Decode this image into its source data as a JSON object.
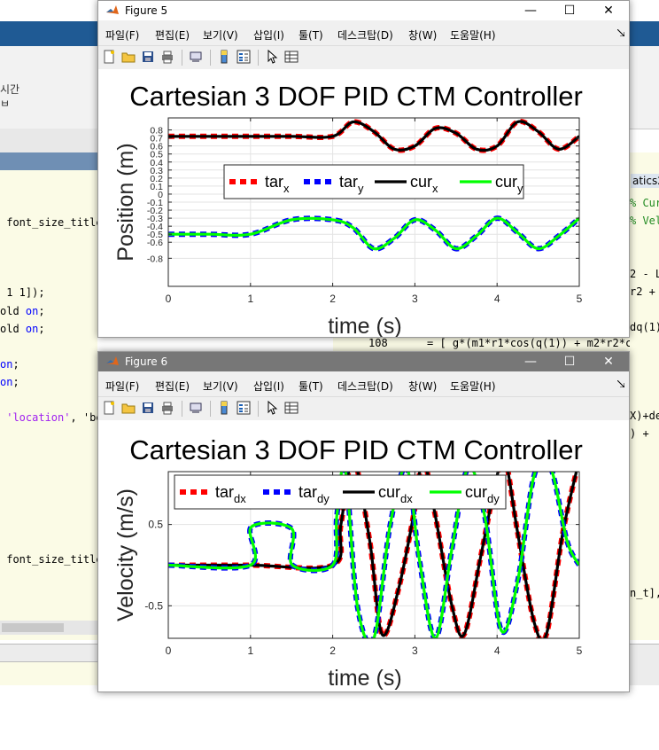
{
  "background": {
    "ribbon_text": [
      "시간",
      "ㅂ"
    ],
    "left_code_lines": [
      {
        "parts": [
          {
            "c": "t",
            "s": " font_size_title)"
          }
        ],
        "y": 244
      },
      {
        "parts": [
          {
            "c": "t",
            "s": " 1 1]);"
          }
        ],
        "y": 323
      },
      {
        "parts": [
          {
            "c": "t",
            "s": "old "
          },
          {
            "c": "k",
            "s": "on"
          },
          {
            "c": "t",
            "s": ";"
          }
        ],
        "y": 344
      },
      {
        "parts": [
          {
            "c": "t",
            "s": "old "
          },
          {
            "c": "k",
            "s": "on"
          },
          {
            "c": "t",
            "s": ";"
          }
        ],
        "y": 364
      },
      {
        "parts": [
          {
            "c": "k",
            "s": "on"
          },
          {
            "c": "t",
            "s": ";"
          }
        ],
        "y": 404
      },
      {
        "parts": [
          {
            "c": "k",
            "s": "on"
          },
          {
            "c": "t",
            "s": ";"
          }
        ],
        "y": 424
      },
      {
        "parts": [
          {
            "c": "p",
            "s": " 'location'"
          },
          {
            "c": "t",
            "s": ", 'be"
          }
        ],
        "y": 464
      },
      {
        "parts": [
          {
            "c": "t",
            "s": " font_size_title)"
          }
        ],
        "y": 624
      }
    ],
    "right_code_lines": [
      {
        "parts": [
          {
            "c": "g",
            "s": "% Cur"
          }
        ],
        "y": 222
      },
      {
        "parts": [
          {
            "c": "g",
            "s": "% Velo"
          }
        ],
        "y": 242
      },
      {
        "parts": [
          {
            "c": "t",
            "s": "2 - L2"
          }
        ],
        "y": 302
      },
      {
        "parts": [
          {
            "c": "t",
            "s": "r2 + 2"
          }
        ],
        "y": 322
      },
      {
        "parts": [
          {
            "c": "t",
            "s": "dq(1)+"
          }
        ],
        "y": 362
      },
      {
        "parts": [
          {
            "c": "t",
            "s": "X)+de"
          }
        ],
        "y": 462
      },
      {
        "parts": [
          {
            "c": "t",
            "s": ") + "
          }
        ],
        "y": 482
      },
      {
        "parts": [
          {
            "c": "t",
            "s": "n_t],"
          }
        ],
        "y": 662
      }
    ],
    "tab_label": "atics2",
    "line_number": "108",
    "mid_code": "= [ g*(m1*r1*cos(q(1)) + m2*r2*cos(q("
  },
  "figure5": {
    "title": "Figure 5",
    "menu": [
      "파일(F)",
      "편집(E)",
      "보기(V)",
      "삽입(I)",
      "툴(T)",
      "데스크탑(D)",
      "창(W)",
      "도움말(H)"
    ]
  },
  "figure6": {
    "title": "Figure 6",
    "menu": [
      "파일(F)",
      "편집(E)",
      "보기(V)",
      "삽입(I)",
      "툴(T)",
      "데스크탑(D)",
      "창(W)",
      "도움말(H)"
    ]
  },
  "chart_data": [
    {
      "type": "line",
      "title": "Cartesian 3 DOF PID CTM Controller",
      "xlabel": "time (s)",
      "ylabel": "Position (m)",
      "xlim": [
        0,
        5
      ],
      "ylim": [
        -1.15,
        0.95
      ],
      "xticks": [
        0,
        1,
        2,
        3,
        4,
        5
      ],
      "yticks": [
        0.8,
        0.7,
        0.6,
        0.5,
        0.4,
        0.3,
        0.2,
        0.1,
        0,
        -0.1,
        -0.2,
        -0.3,
        -0.4,
        -0.5,
        -0.6,
        -0.8
      ],
      "ytick_labels": [
        "0.8",
        "0.7",
        "0.6",
        "0.5",
        "0.4",
        "0.3",
        "0.2",
        "0.1",
        "0",
        "-0.1",
        "-0.2",
        "-0.3",
        "-0.4",
        "-0.5",
        "-0.6",
        "-0.8"
      ],
      "grid": true,
      "legend_position": "middle",
      "legend": [
        {
          "base": "tar",
          "sub": "x",
          "color": "#ff0000",
          "style": "dashed"
        },
        {
          "base": "tar",
          "sub": "y",
          "color": "#0000ff",
          "style": "dashed"
        },
        {
          "base": "cur",
          "sub": "x",
          "color": "#000000",
          "style": "solid"
        },
        {
          "base": "cur",
          "sub": "y",
          "color": "#00ff00",
          "style": "solid"
        }
      ],
      "series": [
        {
          "name": "tar_x",
          "color": "#ff0000",
          "dash": true,
          "x": [
            0,
            0.5,
            1,
            1.5,
            2,
            2.25,
            2.5,
            2.75,
            3,
            3.25,
            3.5,
            3.75,
            4,
            4.25,
            4.5,
            4.75,
            5
          ],
          "y": [
            0.72,
            0.72,
            0.72,
            0.72,
            0.72,
            0.9,
            0.78,
            0.56,
            0.6,
            0.82,
            0.76,
            0.56,
            0.6,
            0.9,
            0.78,
            0.56,
            0.72
          ]
        },
        {
          "name": "cur_x",
          "color": "#000000",
          "dash": false,
          "x": [
            0,
            0.5,
            1,
            1.5,
            2,
            2.25,
            2.5,
            2.75,
            3,
            3.25,
            3.5,
            3.75,
            4,
            4.25,
            4.5,
            4.75,
            5
          ],
          "y": [
            0.72,
            0.72,
            0.72,
            0.72,
            0.72,
            0.9,
            0.78,
            0.56,
            0.6,
            0.82,
            0.76,
            0.56,
            0.6,
            0.9,
            0.78,
            0.56,
            0.72
          ]
        },
        {
          "name": "tar_y",
          "color": "#0000ff",
          "dash": true,
          "x": [
            0,
            0.5,
            1,
            1.5,
            2,
            2.25,
            2.5,
            2.75,
            3,
            3.25,
            3.5,
            3.75,
            4,
            4.25,
            4.5,
            4.75,
            5
          ],
          "y": [
            -0.5,
            -0.5,
            -0.5,
            -0.32,
            -0.32,
            -0.42,
            -0.68,
            -0.55,
            -0.32,
            -0.45,
            -0.68,
            -0.52,
            -0.3,
            -0.48,
            -0.68,
            -0.52,
            -0.3
          ]
        },
        {
          "name": "cur_y",
          "color": "#00ff00",
          "dash": false,
          "x": [
            0,
            0.5,
            1,
            1.5,
            2,
            2.25,
            2.5,
            2.75,
            3,
            3.25,
            3.5,
            3.75,
            4,
            4.25,
            4.5,
            4.75,
            5
          ],
          "y": [
            -0.5,
            -0.5,
            -0.5,
            -0.32,
            -0.32,
            -0.42,
            -0.68,
            -0.55,
            -0.32,
            -0.45,
            -0.68,
            -0.52,
            -0.3,
            -0.48,
            -0.68,
            -0.52,
            -0.3
          ]
        }
      ]
    },
    {
      "type": "line",
      "title": "Cartesian 3 DOF PID CTM Controller",
      "xlabel": "time (s)",
      "ylabel": "Velocity (m/s)",
      "xlim": [
        0,
        5
      ],
      "ylim": [
        -0.9,
        1.15
      ],
      "xticks": [
        0,
        1,
        2,
        3,
        4,
        5
      ],
      "yticks": [
        0.5,
        -0.5
      ],
      "ytick_labels": [
        "0.5",
        "-0.5"
      ],
      "grid": true,
      "legend_position": "top-left",
      "legend": [
        {
          "base": "tar",
          "sub": "dx",
          "color": "#ff0000",
          "style": "dashed"
        },
        {
          "base": "tar",
          "sub": "dy",
          "color": "#0000ff",
          "style": "dashed"
        },
        {
          "base": "cur",
          "sub": "dx",
          "color": "#000000",
          "style": "solid"
        },
        {
          "base": "cur",
          "sub": "dy",
          "color": "#00ff00",
          "style": "solid"
        }
      ],
      "series": [
        {
          "name": "tar_dx",
          "color": "#ff0000",
          "dash": true,
          "x": [
            0,
            1,
            2,
            2.1,
            2.25,
            2.45,
            2.6,
            2.8,
            3.0,
            3.1,
            3.25,
            3.45,
            3.6,
            3.8,
            4.0,
            4.1,
            4.25,
            4.45,
            4.6,
            4.8,
            5
          ],
          "y": [
            0,
            0,
            0,
            0.5,
            1.3,
            0.3,
            -0.85,
            -0.3,
            0.7,
            1.3,
            0.6,
            -0.5,
            -0.85,
            0.1,
            1.1,
            1.3,
            0.4,
            -0.7,
            -0.85,
            0.4,
            1.3
          ]
        },
        {
          "name": "cur_dx",
          "color": "#000000",
          "dash": false,
          "x": [
            0,
            1,
            2,
            2.1,
            2.25,
            2.45,
            2.6,
            2.8,
            3.0,
            3.1,
            3.25,
            3.45,
            3.6,
            3.8,
            4.0,
            4.1,
            4.25,
            4.45,
            4.6,
            4.8,
            5
          ],
          "y": [
            0,
            0,
            0,
            0.5,
            1.3,
            0.3,
            -0.85,
            -0.3,
            0.7,
            1.3,
            0.6,
            -0.5,
            -0.85,
            0.1,
            1.1,
            1.3,
            0.4,
            -0.7,
            -0.85,
            0.4,
            1.3
          ]
        },
        {
          "name": "tar_dy",
          "color": "#0000ff",
          "dash": true,
          "x": [
            0,
            1,
            1.01,
            1.5,
            1.51,
            2,
            2.05,
            2.15,
            2.3,
            2.5,
            2.7,
            2.9,
            3.05,
            3.25,
            3.45,
            3.65,
            3.85,
            4.05,
            4.25,
            4.45,
            4.65,
            4.85,
            5
          ],
          "y": [
            0,
            0,
            0.47,
            0.45,
            0,
            0,
            0.6,
            1.2,
            -0.5,
            -0.9,
            0.5,
            1.2,
            0.1,
            -0.9,
            0.2,
            1.2,
            0.6,
            -0.8,
            -0.2,
            1.1,
            1.2,
            0.3,
            0
          ]
        },
        {
          "name": "cur_dy",
          "color": "#00ff00",
          "dash": false,
          "x": [
            0,
            1,
            1.01,
            1.5,
            1.51,
            2,
            2.05,
            2.15,
            2.3,
            2.5,
            2.7,
            2.9,
            3.05,
            3.25,
            3.45,
            3.65,
            3.85,
            4.05,
            4.25,
            4.45,
            4.65,
            4.85,
            5
          ],
          "y": [
            0,
            0,
            0.47,
            0.45,
            0,
            0,
            0.6,
            1.2,
            -0.5,
            -0.9,
            0.5,
            1.2,
            0.1,
            -0.9,
            0.2,
            1.2,
            0.6,
            -0.8,
            -0.2,
            1.1,
            1.2,
            0.3,
            0
          ]
        }
      ]
    }
  ]
}
